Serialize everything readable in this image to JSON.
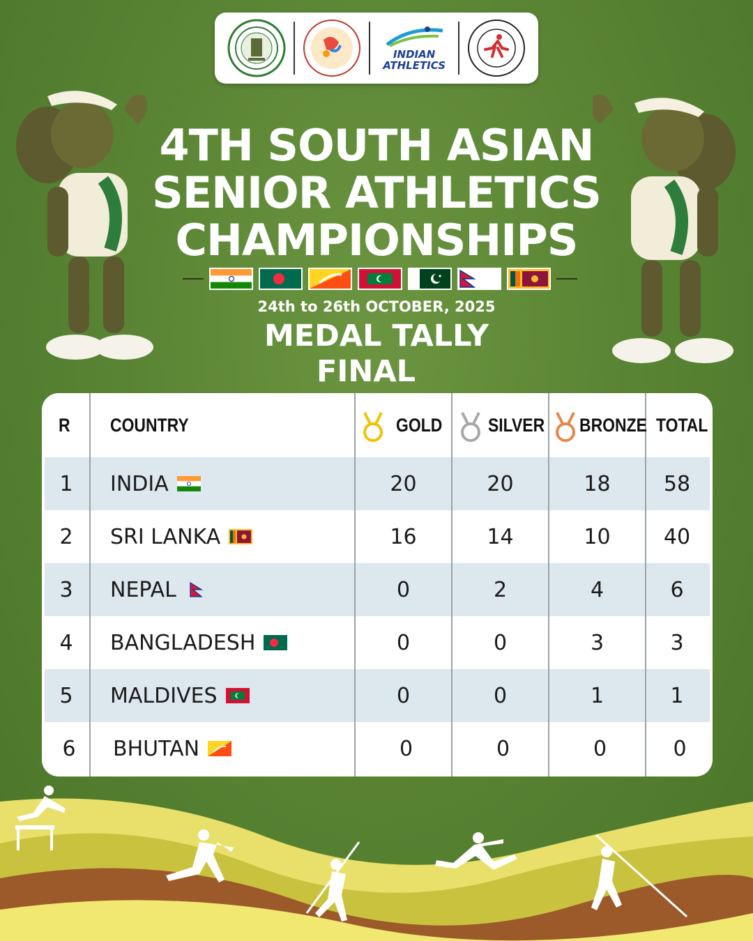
{
  "header": {
    "title_line1": "4TH SOUTH ASIAN",
    "title_line2": "SENIOR ATHLETICS",
    "title_line3": "CHAMPIONSHIPS",
    "dates": "24th to 26th OCTOBER, 2025",
    "subtitle": "MEDAL TALLY",
    "status": "FINAL"
  },
  "logos": {
    "indian_athletics_line1": "INDIAN",
    "indian_athletics_line2": "ATHLETICS"
  },
  "table": {
    "headers": {
      "rank": "R",
      "country": "COUNTRY",
      "gold": "GOLD",
      "silver": "SILVER",
      "bronze": "BRONZE",
      "total": "TOTAL"
    },
    "rows": [
      {
        "rank": "1",
        "country": "INDIA",
        "gold": "20",
        "silver": "20",
        "bronze": "18",
        "total": "58"
      },
      {
        "rank": "2",
        "country": "SRI LANKA",
        "gold": "16",
        "silver": "14",
        "bronze": "10",
        "total": "40"
      },
      {
        "rank": "3",
        "country": "NEPAL",
        "gold": "0",
        "silver": "2",
        "bronze": "4",
        "total": "6"
      },
      {
        "rank": "4",
        "country": "BANGLADESH",
        "gold": "0",
        "silver": "0",
        "bronze": "3",
        "total": "3"
      },
      {
        "rank": "5",
        "country": "MALDIVES",
        "gold": "0",
        "silver": "0",
        "bronze": "1",
        "total": "1"
      },
      {
        "rank": "6",
        "country": "BHUTAN",
        "gold": "0",
        "silver": "0",
        "bronze": "0",
        "total": "0"
      }
    ]
  },
  "colors": {
    "background": "#5a8534",
    "row_shade": "#dde7ee",
    "gold": "#f2c200",
    "silver": "#a8a8a8",
    "bronze": "#e8864a"
  }
}
